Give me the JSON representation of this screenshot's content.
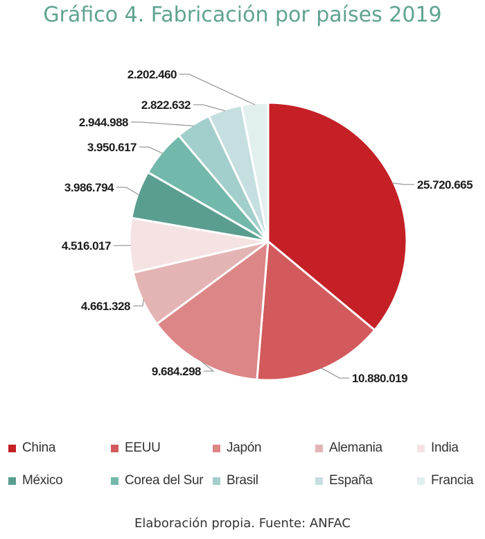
{
  "chart_data": {
    "type": "pie",
    "title": "Gráfico 4. Fabricación por países 2019",
    "slices": [
      {
        "name": "China",
        "value": 25720665,
        "label": "25.720.665",
        "color": "#c42026"
      },
      {
        "name": "EEUU",
        "value": 10880019,
        "label": "10.880.019",
        "color": "#d25a5c"
      },
      {
        "name": "Japón",
        "value": 9684298,
        "label": "9.684.298",
        "color": "#dc8687"
      },
      {
        "name": "Alemania",
        "value": 4661328,
        "label": "4.661.328",
        "color": "#e4b3b3"
      },
      {
        "name": "India",
        "value": 4516017,
        "label": "4.516.017",
        "color": "#f5e3e4"
      },
      {
        "name": "México",
        "value": 3986794,
        "label": "3.986.794",
        "color": "#5a9e8f"
      },
      {
        "name": "Corea del Sur",
        "value": 3950617,
        "label": "3.950.617",
        "color": "#72b8ab"
      },
      {
        "name": "Brasil",
        "value": 2944988,
        "label": "2.944.988",
        "color": "#a2cecb"
      },
      {
        "name": "España",
        "value": 2822632,
        "label": "2.822.632",
        "color": "#c5dfe1"
      },
      {
        "name": "Francia",
        "value": 2202460,
        "label": "2.202.460",
        "color": "#e2efef"
      }
    ],
    "legend_position": "bottom"
  },
  "source": "Elaboración propia. Fuente: ANFAC"
}
